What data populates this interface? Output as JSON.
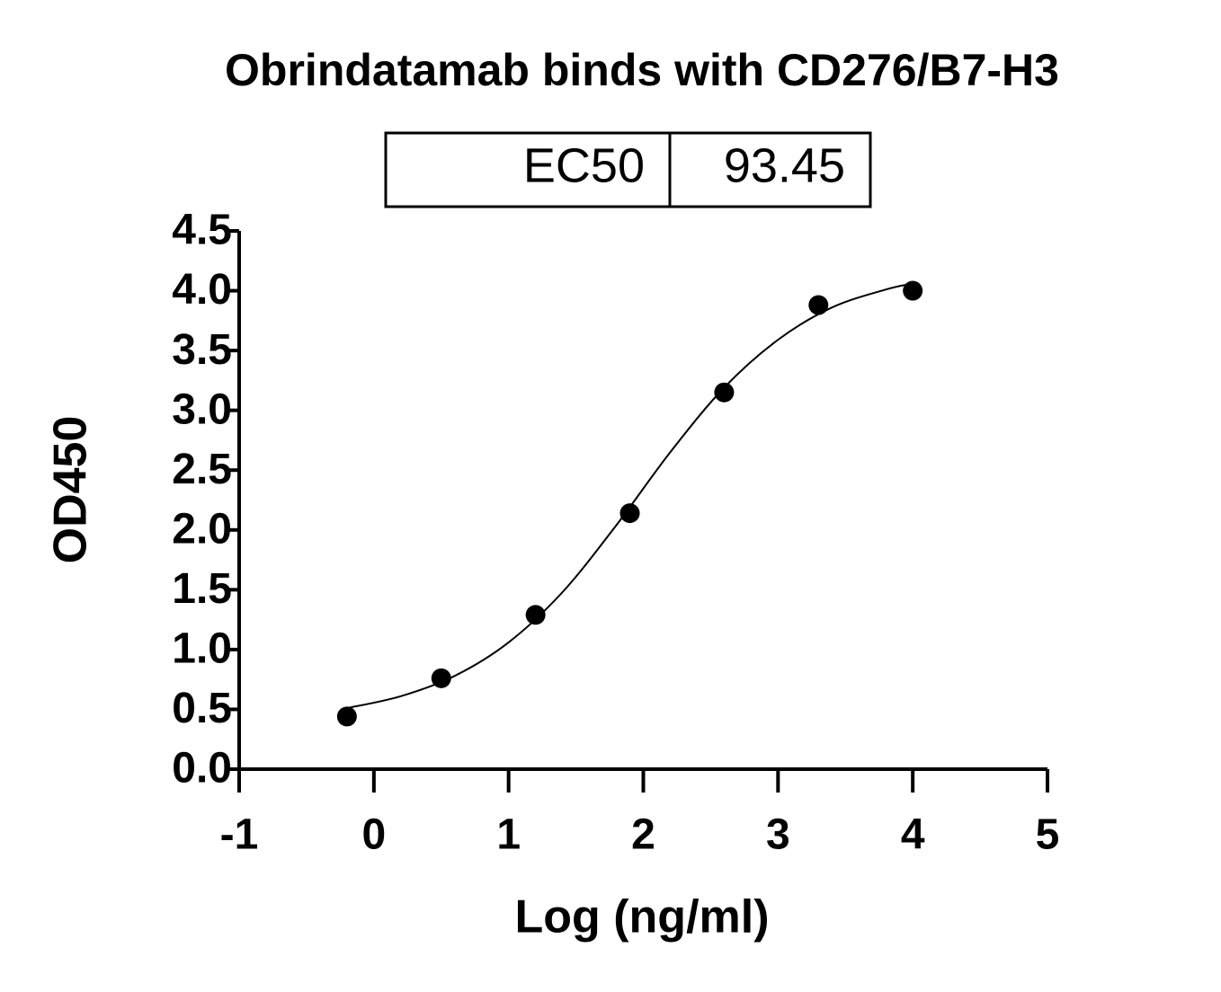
{
  "chart_data": {
    "type": "scatter",
    "title": "Obrindatamab binds with CD276/B7-H3",
    "ec50_table": {
      "label": "EC50",
      "value": "93.45"
    },
    "xlabel": "Log (ng/ml)",
    "ylabel": "OD450",
    "xlim": [
      -1,
      5
    ],
    "ylim": [
      0,
      4.5
    ],
    "xticks": [
      -1,
      0,
      1,
      2,
      3,
      4,
      5
    ],
    "yticks": [
      {
        "value": 0,
        "label": "0.0"
      },
      0.5,
      {
        "value": 1,
        "label": "1.0"
      },
      1.5,
      {
        "value": 2,
        "label": "2.0"
      },
      2.5,
      {
        "value": 3,
        "label": "3.0"
      },
      3.5,
      {
        "value": 4,
        "label": "4.0"
      },
      4.5
    ],
    "color": "#000000",
    "x": [
      -0.2,
      0.5,
      1.2,
      1.9,
      2.6,
      3.3,
      4.0
    ],
    "values": [
      0.44,
      0.76,
      1.29,
      2.14,
      3.15,
      3.88,
      4.0
    ],
    "fit": {
      "x": [
        -0.2,
        0.2,
        0.6,
        1.0,
        1.4,
        1.8,
        2.2,
        2.6,
        3.0,
        3.4,
        3.8,
        4.0
      ],
      "values": [
        0.51,
        0.61,
        0.78,
        1.06,
        1.48,
        2.04,
        2.65,
        3.19,
        3.59,
        3.86,
        4.01,
        4.06
      ]
    }
  }
}
